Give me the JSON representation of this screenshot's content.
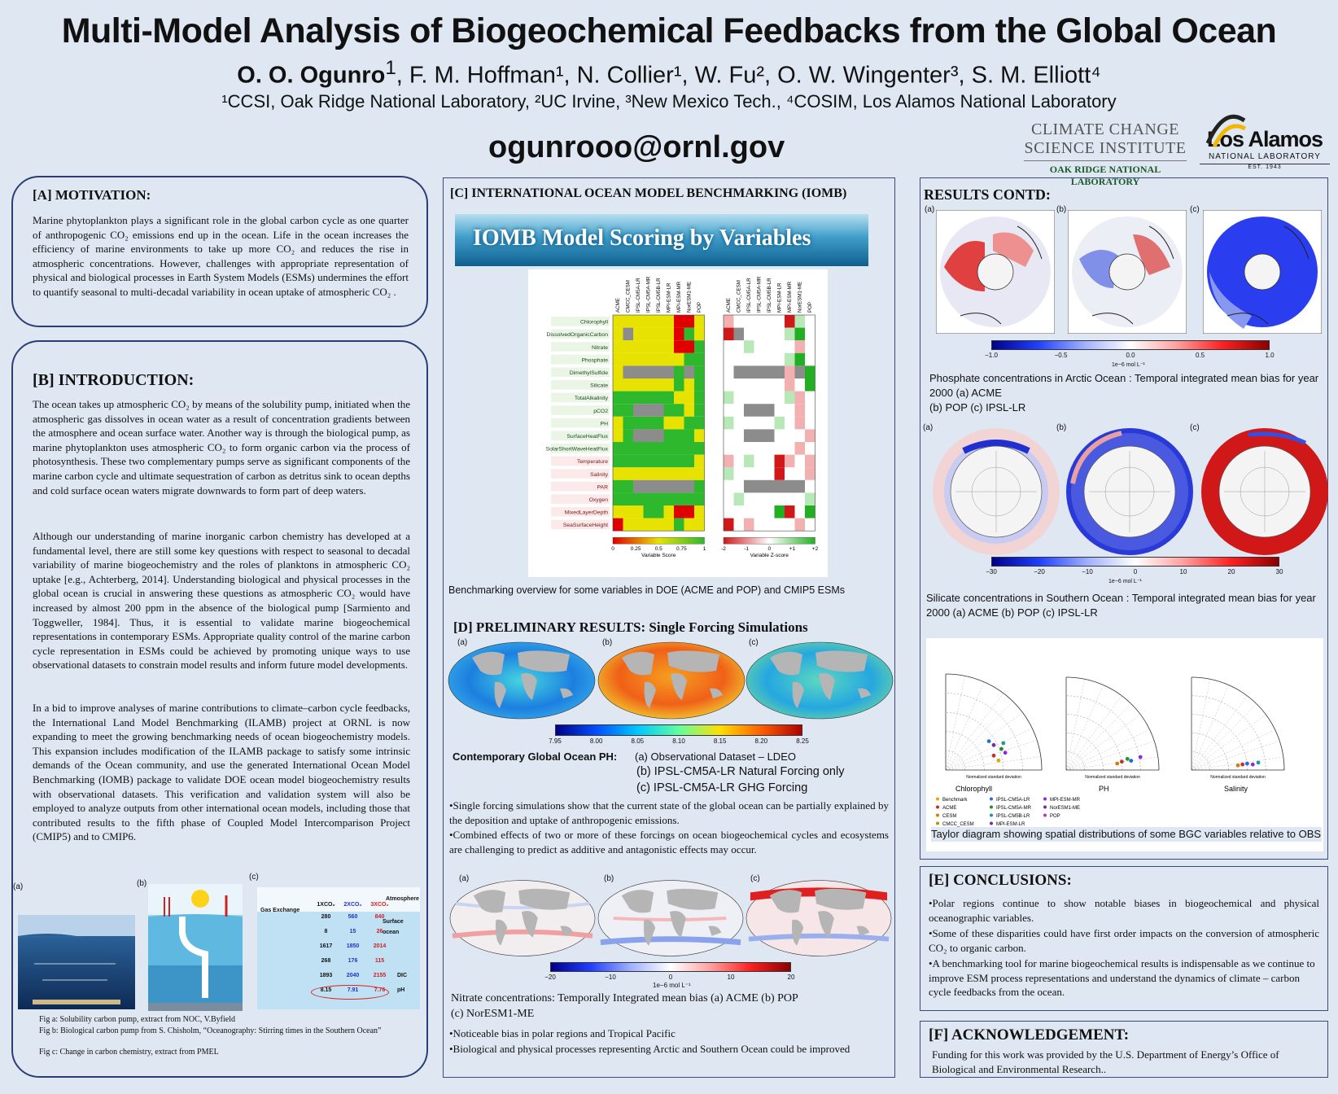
{
  "header": {
    "title": "Multi-Model Analysis of Biogeochemical Feedbacks from the Global Ocean",
    "lead_author": "O. O. Ogunro",
    "other_authors": ", F. M. Hoffman¹, N. Collier¹, W. Fu², O. W. Wingenter³, S. M. Elliott⁴",
    "lead_sup": "1",
    "affiliations": "¹CCSI, Oak Ridge National Laboratory,  ²UC Irvine, ³New Mexico Tech., ⁴COSIM, Los Alamos National Laboratory",
    "email": "ogunrooo@ornl.gov"
  },
  "logos": {
    "ccsi_line1": "CLIMATE CHANGE",
    "ccsi_line2": "SCIENCE INSTITUTE",
    "ccsi_line3": "OAK RIDGE NATIONAL LABORATORY",
    "la_name": "Los Alamos",
    "la_sub": "NATIONAL LABORATORY",
    "la_est": "EST. 1943"
  },
  "motivation": {
    "title": "[A] MOTIVATION:",
    "text": "Marine phytoplankton plays a significant role in the global carbon cycle as one quarter of anthropogenic CO₂ emissions end up in the ocean. Life in the ocean increases the efficiency of marine environments to take up more CO₂ and reduces the rise in atmospheric concentrations. However, challenges with appropriate representation of physical and biological processes in Earth System Models (ESMs) undermines the effort to quantify seasonal to multi-decadal variability in ocean uptake of atmospheric CO₂ ."
  },
  "introduction": {
    "title": "[B] INTRODUCTION:",
    "p1": "The ocean takes up atmospheric CO₂ by means of the solubility pump, initiated when the atmospheric gas dissolves in ocean water as a result of concentration gradients between the atmosphere and ocean surface water. Another way is through the biological pump, as marine phytoplankton uses atmospheric CO₂ to form organic carbon via the process of photosynthesis. These two complementary pumps serve as significant components of the marine carbon cycle and ultimate sequestration of carbon as detritus sink to ocean depths and cold surface ocean waters migrate downwards to form part of deep waters.",
    "p2": "Although our understanding of marine inorganic carbon chemistry has developed at a fundamental level, there are still some key questions with respect to seasonal to decadal variability of marine biogeochemistry and the roles of planktons in atmospheric CO₂ uptake [e.g., Achterberg, 2014]. Understanding biological and physical processes in the global ocean is crucial in answering these questions as atmospheric CO₂ would have increased by almost 200 ppm in the absence of the biological pump [Sarmiento and Toggweller, 1984]. Thus, it is essential to validate marine biogeochemical representations in contemporary ESMs. Appropriate quality control of the marine carbon cycle representation in ESMs could be achieved by promoting unique ways to use observational datasets to constrain model results and inform future model developments.",
    "p3": "In a bid to improve analyses of marine contributions to climate–carbon cycle feedbacks, the International Land Model Benchmarking (ILAMB) project at ORNL is now expanding to meet the growing benchmarking needs of ocean biogeochemistry models.  This expansion includes modification of the ILAMB package to satisfy some intrinsic demands of the Ocean community, and use the generated International Ocean Model Benchmarking (IOMB) package to validate DOE ocean model biogeochemistry results with observational datasets.  This verification and validation system will also be employed to analyze outputs from other international ocean models, including those that contributed results to the fifth phase of Coupled Model Intercomparison Project (CMIP5) and to CMIP6.",
    "fig_labels": [
      "(a)",
      "(b)",
      "(c)"
    ],
    "cap_a": "Fig a: Solubility carbon pump, extract from  NOC, V.Byfield",
    "cap_b": "Fig b: Biological carbon pump from S. Chisholm, “Oceanography: Stirring times in the Southern Ocean”",
    "cap_c": "Fig c: Change in carbon chemistry, extract from PMEL",
    "figc": {
      "headers": [
        "1XCO₂",
        "2XCO₂",
        "3XCO₂"
      ],
      "rows": [
        [
          "280",
          "560",
          "840"
        ],
        [
          "8",
          "15",
          "26"
        ],
        [
          "1617",
          "1850",
          "2014"
        ],
        [
          "268",
          "176",
          "115"
        ],
        [
          "1893",
          "2040",
          "2155"
        ],
        [
          "8.15",
          "7.91",
          "7.76"
        ]
      ],
      "row_tags": [
        "",
        "",
        "",
        "",
        "DIC",
        "pH"
      ],
      "atm": "Atmosphere",
      "surf": "Surface ocean",
      "gas": "Gas Exchange"
    }
  },
  "iomb": {
    "title": "[C] INTERNATIONAL OCEAN MODEL BENCHMARKING (IOMB)",
    "banner": "IOMB Model Scoring by Variables",
    "models": [
      "ACME",
      "CMCC_CESM",
      "IPSL-CM5A-LR",
      "IPSL-CM5A-MR",
      "IPSL-CM5B-LR",
      "MPI-ESM-LR",
      "MPI-ESM-MR",
      "NorESM1-ME",
      "POP"
    ],
    "variables": [
      "Chlorophyll",
      "DissolvedOrganicCarbon",
      "Nitrate",
      "Phosphate",
      "DimethylSulfide",
      "Silicate",
      "TotalAlkalinity",
      "pCO2",
      "PH",
      "SurfaceHeatFlux",
      "SolarShortWaveHeatFlux",
      "Temperature",
      "Salinity",
      "PAR",
      "Oxygen",
      "MixedLayerDepth",
      "SeaSurfaceHeight"
    ],
    "score_ticks": [
      "0",
      "0.25",
      "0.5",
      "0.75",
      "1"
    ],
    "score_label": "Variable Score",
    "z_ticks": [
      "-2",
      "-1",
      "0",
      "+1",
      "+2"
    ],
    "z_label": "Variable Z-score",
    "caption": "Benchmarking overview for some variables in DOE (ACME and POP) and CMIP5 ESMs"
  },
  "prelim": {
    "title": "[D] PRELIMINARY RESULTS: Single Forcing Simulations",
    "map_labels": [
      "(a)",
      "(b)",
      "(c)"
    ],
    "ph_ticks": [
      "7.95",
      "8.00",
      "8.05",
      "8.10",
      "8.15",
      "8.20",
      "8.25"
    ],
    "ph_head": "Contemporary Global Ocean PH:",
    "ph_a": "(a)  Observational Dataset – LDEO",
    "ph_b": "(b)  IPSL-CM5A-LR Natural Forcing only",
    "ph_c": "(c)  IPSL-CM5A-LR GHG Forcing",
    "bullet1": "•Single forcing simulations show that the current state of the global ocean can be partially explained by the deposition and uptake of anthropogenic emissions.",
    "bullet2": "•Combined effects of two or more of these forcings on ocean biogeochemical cycles and ecosystems are challenging to predict as additive and antagonistic effects may occur.",
    "nit_ticks": [
      "−20",
      "−10",
      "0",
      "10",
      "20"
    ],
    "nit_unit": "1e−6 mol L⁻¹",
    "nit_caption1": "Nitrate concentrations: Temporally Integrated mean bias (a) ACME  (b) POP",
    "nit_caption2": "(c) NorESM1-ME",
    "nit_b1": "•Noticeable bias in polar regions and Tropical Pacific",
    "nit_b2": "•Biological and physical processes representing Arctic and Southern Ocean could be improved"
  },
  "results": {
    "title": "RESULTS CONTD:",
    "map_labels": [
      "(a)",
      "(b)",
      "(c)"
    ],
    "phos_ticks": [
      "−1.0",
      "−0.5",
      "0.0",
      "0.5",
      "1.0"
    ],
    "phos_unit": "1e−6 mol L⁻¹",
    "phos_caption1": "Phosphate concentrations in Arctic Ocean : Temporal integrated mean bias for year 2000 (a) ACME",
    "phos_caption2": "(b) POP  (c) IPSL-LR",
    "sil_ticks": [
      "−30",
      "−20",
      "−10",
      "0",
      "10",
      "20",
      "30"
    ],
    "sil_unit": "1e−6 mol L⁻¹",
    "sil_caption": "Silicate concentrations in Southern Ocean : Temporal integrated mean bias for year 2000 (a) ACME  (b) POP  (c) IPSL-LR",
    "taylor_names": [
      "Chlorophyll",
      "PH",
      "Salinity"
    ],
    "taylor_axis": "Normalized standard deviation",
    "legend": [
      "Benchmark",
      "ACME",
      "CESM",
      "CMCC_CESM",
      "IPSL-CM5A-LR",
      "IPSL-CM5A-MR",
      "IPSL-CM5B-LR",
      "MPI-ESM-LR",
      "MPI-ESM-MR",
      "NorESM1-ME",
      "POP"
    ],
    "taylor_caption": "Taylor diagram showing spatial distributions of some BGC variables relative to OBS"
  },
  "conclusions": {
    "title": "[E] CONCLUSIONS:",
    "b1": "•Polar regions continue to show notable biases in biogeochemical and physical oceanographic variables.",
    "b2": "•Some of these disparities could have first order impacts on the conversion of atmospheric CO₂ to organic carbon.",
    "b3": "•A benchmarking tool for marine biogeochemical results is indispensable as we continue to improve ESM process representations and understand the dynamics of climate – carbon cycle feedbacks from the ocean."
  },
  "ack": {
    "title": "[F] ACKNOWLEDGEMENT:",
    "text": "Funding for this work was provided by the U.S. Department of Energy’s Office of Biological and Environmental Research.."
  },
  "colors": {
    "border": "#2c3e74",
    "bg": "#dfe7f2",
    "green": "#33b233",
    "yellow": "#f2e600",
    "red": "#e00000",
    "gray": "#8c8c8c"
  }
}
